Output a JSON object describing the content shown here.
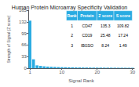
{
  "chart_data": {
    "type": "bar",
    "title": "Human Protein Microarray Specificity Validation",
    "xlabel": "Signal Rank",
    "ylabel": "Strength of Signal (Z score)",
    "x": [
      1,
      2,
      3,
      4,
      5,
      6,
      7,
      8,
      9,
      10,
      11,
      12,
      13,
      14,
      15,
      16,
      17,
      18,
      19,
      20,
      21,
      22,
      23,
      24,
      25,
      26,
      27,
      28,
      29,
      30
    ],
    "values": [
      135.3,
      25.48,
      8.24,
      6.75,
      5.5,
      4.8,
      4.2,
      3.8,
      3.4,
      3.1,
      2.9,
      2.7,
      2.5,
      2.3,
      2.2,
      2.1,
      2.0,
      1.9,
      1.8,
      1.75,
      1.7,
      1.65,
      1.6,
      1.55,
      1.5,
      1.45,
      1.4,
      1.35,
      1.3,
      1.25
    ],
    "color": "#29abe2",
    "xlim": [
      0.5,
      30.5
    ],
    "xticks": [
      1,
      10,
      20,
      30
    ],
    "ylim": [
      0,
      165
    ],
    "yticks": [
      0,
      33,
      66,
      99,
      132,
      165
    ],
    "grid": false,
    "table": {
      "headers": [
        "Rank",
        "Protein",
        "Z score",
        "S score"
      ],
      "rows": [
        [
          "1",
          "CD47",
          "135.3",
          "109.82"
        ],
        [
          "2",
          "CD19",
          "25.48",
          "17.24"
        ],
        [
          "3",
          "IBGSO",
          "8.24",
          "1.49"
        ]
      ]
    }
  }
}
